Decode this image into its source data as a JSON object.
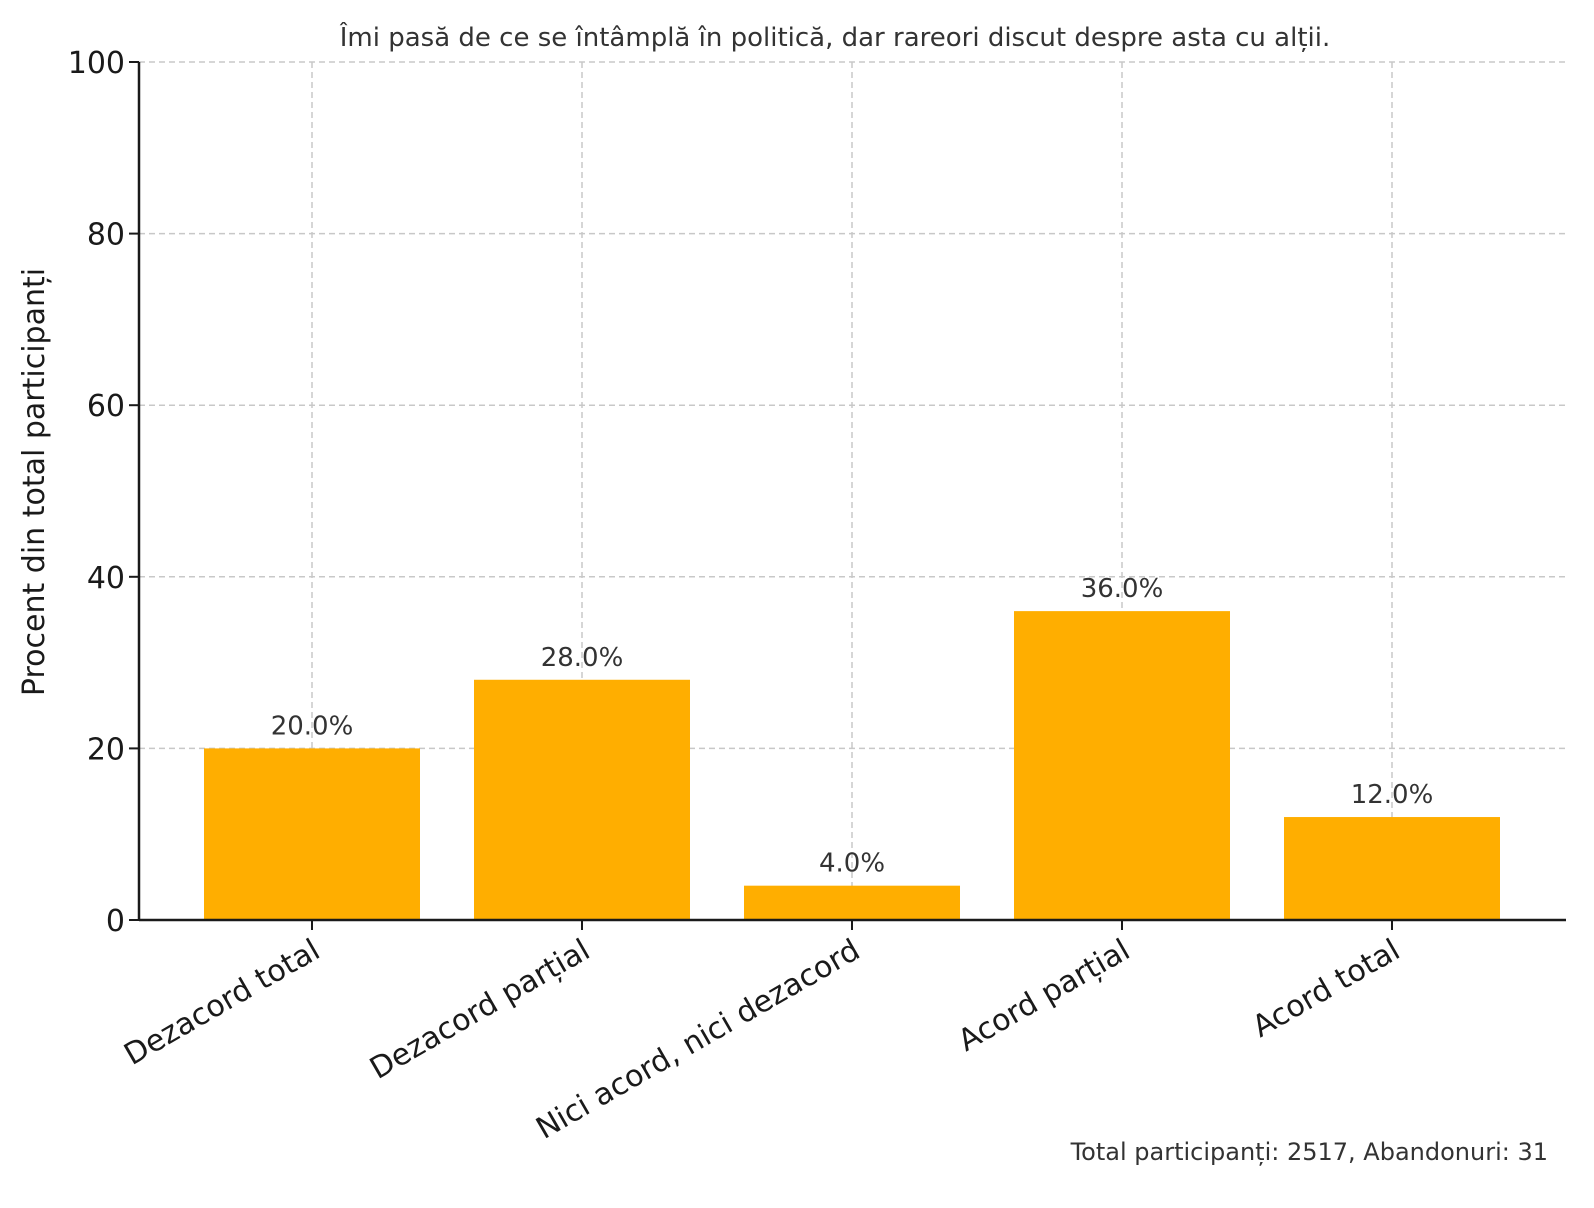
{
  "chart_data": {
    "type": "bar",
    "title": "Îmi pasă de ce se întâmplă în politică, dar rareori discut despre asta cu alții.",
    "xlabel": "",
    "ylabel": "Procent din total participanți",
    "categories": [
      "Dezacord total",
      "Dezacord parțial",
      "Nici acord, nici dezacord",
      "Acord parțial",
      "Acord total"
    ],
    "values": [
      20.0,
      28.0,
      4.0,
      36.0,
      12.0
    ],
    "data_labels": [
      "20.0%",
      "28.0%",
      "4.0%",
      "36.0%",
      "12.0%"
    ],
    "ylim": [
      0,
      100
    ],
    "yticks": [
      0,
      20,
      40,
      60,
      80,
      100
    ],
    "ytick_labels": [
      "0",
      "20",
      "40",
      "60",
      "80",
      "100"
    ],
    "grid": true,
    "bar_color": "#FFAE00",
    "grid_color": "#c8c8c8",
    "footnote": "Total participanți: 2517, Abandonuri: 31"
  }
}
